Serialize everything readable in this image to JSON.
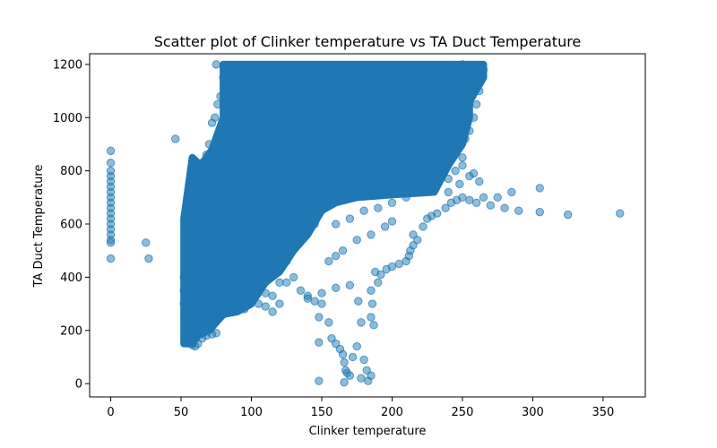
{
  "chart_data": {
    "type": "scatter",
    "title": "Scatter plot of Clinker temperature vs TA Duct Temperature",
    "xlabel": "Clinker temperature",
    "ylabel": "TA Duct Temperature",
    "xlim": [
      -15,
      380
    ],
    "ylim": [
      -50,
      1240
    ],
    "xticks": [
      0,
      50,
      100,
      150,
      200,
      250,
      300,
      350
    ],
    "yticks": [
      0,
      200,
      400,
      600,
      800,
      1000,
      1200
    ],
    "grid": false,
    "legend": "none",
    "marker_color": "#1f77b4",
    "marker_alpha": 0.5,
    "dense_regions": [
      {
        "polygon": [
          [
            52,
            150
          ],
          [
            52,
            620
          ],
          [
            58,
            850
          ],
          [
            64,
            820
          ],
          [
            72,
            880
          ],
          [
            80,
            1000
          ],
          [
            80,
            1200
          ],
          [
            150,
            1200
          ],
          [
            240,
            1200
          ],
          [
            265,
            1200
          ],
          [
            265,
            1150
          ],
          [
            255,
            1060
          ],
          [
            255,
            1000
          ],
          [
            250,
            900
          ],
          [
            240,
            820
          ],
          [
            230,
            720
          ],
          [
            200,
            710
          ],
          [
            175,
            700
          ],
          [
            160,
            680
          ],
          [
            150,
            650
          ],
          [
            140,
            560
          ],
          [
            130,
            500
          ],
          [
            120,
            420
          ],
          [
            110,
            380
          ],
          [
            100,
            300
          ],
          [
            90,
            270
          ],
          [
            80,
            260
          ],
          [
            70,
            200
          ],
          [
            62,
            180
          ],
          [
            58,
            150
          ]
        ]
      }
    ],
    "points": [
      [
        0,
        875
      ],
      [
        0,
        830
      ],
      [
        0,
        800
      ],
      [
        0,
        780
      ],
      [
        0,
        760
      ],
      [
        0,
        740
      ],
      [
        0,
        720
      ],
      [
        0,
        700
      ],
      [
        0,
        680
      ],
      [
        0,
        660
      ],
      [
        0,
        640
      ],
      [
        0,
        620
      ],
      [
        0,
        600
      ],
      [
        0,
        580
      ],
      [
        0,
        560
      ],
      [
        0,
        540
      ],
      [
        0,
        530
      ],
      [
        0,
        470
      ],
      [
        25,
        530
      ],
      [
        27,
        470
      ],
      [
        46,
        920
      ],
      [
        55,
        160
      ],
      [
        58,
        145
      ],
      [
        60,
        140
      ],
      [
        62,
        150
      ],
      [
        65,
        170
      ],
      [
        68,
        180
      ],
      [
        72,
        185
      ],
      [
        75,
        190
      ],
      [
        80,
        260
      ],
      [
        85,
        275
      ],
      [
        95,
        280
      ],
      [
        105,
        300
      ],
      [
        110,
        290
      ],
      [
        115,
        270
      ],
      [
        120,
        300
      ],
      [
        125,
        380
      ],
      [
        130,
        400
      ],
      [
        135,
        350
      ],
      [
        140,
        320
      ],
      [
        145,
        310
      ],
      [
        150,
        300
      ],
      [
        148,
        250
      ],
      [
        148,
        155
      ],
      [
        148,
        10
      ],
      [
        155,
        230
      ],
      [
        157,
        170
      ],
      [
        160,
        150
      ],
      [
        163,
        130
      ],
      [
        165,
        110
      ],
      [
        166,
        80
      ],
      [
        167,
        50
      ],
      [
        168,
        40
      ],
      [
        166,
        5
      ],
      [
        170,
        30
      ],
      [
        172,
        100
      ],
      [
        175,
        140
      ],
      [
        178,
        20
      ],
      [
        180,
        90
      ],
      [
        182,
        50
      ],
      [
        183,
        10
      ],
      [
        185,
        30
      ],
      [
        186,
        300
      ],
      [
        187,
        220
      ],
      [
        185,
        250
      ],
      [
        178,
        230
      ],
      [
        176,
        310
      ],
      [
        188,
        420
      ],
      [
        192,
        410
      ],
      [
        196,
        430
      ],
      [
        200,
        440
      ],
      [
        205,
        450
      ],
      [
        210,
        460
      ],
      [
        212,
        480
      ],
      [
        213,
        500
      ],
      [
        215,
        520
      ],
      [
        218,
        540
      ],
      [
        215,
        560
      ],
      [
        222,
        590
      ],
      [
        225,
        620
      ],
      [
        200,
        610
      ],
      [
        195,
        590
      ],
      [
        185,
        560
      ],
      [
        175,
        540
      ],
      [
        165,
        500
      ],
      [
        160,
        480
      ],
      [
        155,
        460
      ],
      [
        228,
        630
      ],
      [
        232,
        640
      ],
      [
        238,
        660
      ],
      [
        242,
        680
      ],
      [
        246,
        690
      ],
      [
        250,
        700
      ],
      [
        255,
        690
      ],
      [
        260,
        680
      ],
      [
        265,
        700
      ],
      [
        270,
        670
      ],
      [
        275,
        700
      ],
      [
        280,
        660
      ],
      [
        285,
        720
      ],
      [
        290,
        650
      ],
      [
        305,
        735
      ],
      [
        305,
        645
      ],
      [
        325,
        635
      ],
      [
        362,
        640
      ],
      [
        240,
        770
      ],
      [
        245,
        800
      ],
      [
        250,
        820
      ],
      [
        255,
        780
      ],
      [
        258,
        790
      ],
      [
        262,
        760
      ],
      [
        228,
        750
      ],
      [
        230,
        780
      ],
      [
        236,
        790
      ],
      [
        240,
        720
      ],
      [
        248,
        750
      ],
      [
        250,
        850
      ],
      [
        252,
        920
      ],
      [
        255,
        950
      ],
      [
        258,
        1000
      ],
      [
        260,
        1050
      ],
      [
        262,
        1100
      ],
      [
        260,
        1150
      ],
      [
        262,
        1170
      ],
      [
        265,
        1180
      ],
      [
        258,
        1190
      ],
      [
        250,
        1200
      ],
      [
        245,
        1180
      ],
      [
        240,
        1150
      ],
      [
        235,
        1120
      ],
      [
        230,
        1060
      ],
      [
        226,
        1000
      ],
      [
        222,
        960
      ],
      [
        75,
        1200
      ],
      [
        80,
        1150
      ],
      [
        82,
        1110
      ],
      [
        78,
        1080
      ],
      [
        76,
        1050
      ],
      [
        74,
        1000
      ],
      [
        72,
        980
      ],
      [
        70,
        900
      ],
      [
        68,
        860
      ],
      [
        65,
        830
      ],
      [
        62,
        800
      ],
      [
        60,
        780
      ],
      [
        58,
        760
      ],
      [
        56,
        740
      ],
      [
        56,
        700
      ],
      [
        55,
        650
      ],
      [
        54,
        600
      ],
      [
        54,
        550
      ],
      [
        53,
        500
      ],
      [
        53,
        450
      ],
      [
        52,
        400
      ],
      [
        52,
        350
      ],
      [
        52,
        300
      ],
      [
        53,
        250
      ],
      [
        54,
        200
      ],
      [
        90,
        500
      ],
      [
        95,
        420
      ],
      [
        100,
        380
      ],
      [
        105,
        360
      ],
      [
        110,
        340
      ],
      [
        115,
        330
      ],
      [
        120,
        380
      ],
      [
        125,
        460
      ],
      [
        130,
        520
      ],
      [
        135,
        560
      ],
      [
        140,
        580
      ],
      [
        145,
        600
      ],
      [
        110,
        700
      ],
      [
        120,
        750
      ],
      [
        130,
        800
      ],
      [
        140,
        850
      ],
      [
        150,
        900
      ],
      [
        160,
        950
      ],
      [
        170,
        1000
      ],
      [
        180,
        1050
      ],
      [
        190,
        1100
      ],
      [
        200,
        1150
      ],
      [
        210,
        1180
      ],
      [
        100,
        1100
      ],
      [
        110,
        1050
      ],
      [
        120,
        1000
      ],
      [
        130,
        950
      ],
      [
        140,
        900
      ],
      [
        160,
        600
      ],
      [
        170,
        620
      ],
      [
        180,
        650
      ],
      [
        190,
        660
      ],
      [
        200,
        680
      ],
      [
        210,
        700
      ],
      [
        185,
        350
      ],
      [
        190,
        380
      ],
      [
        170,
        370
      ],
      [
        160,
        360
      ],
      [
        150,
        340
      ],
      [
        140,
        330
      ]
    ]
  }
}
